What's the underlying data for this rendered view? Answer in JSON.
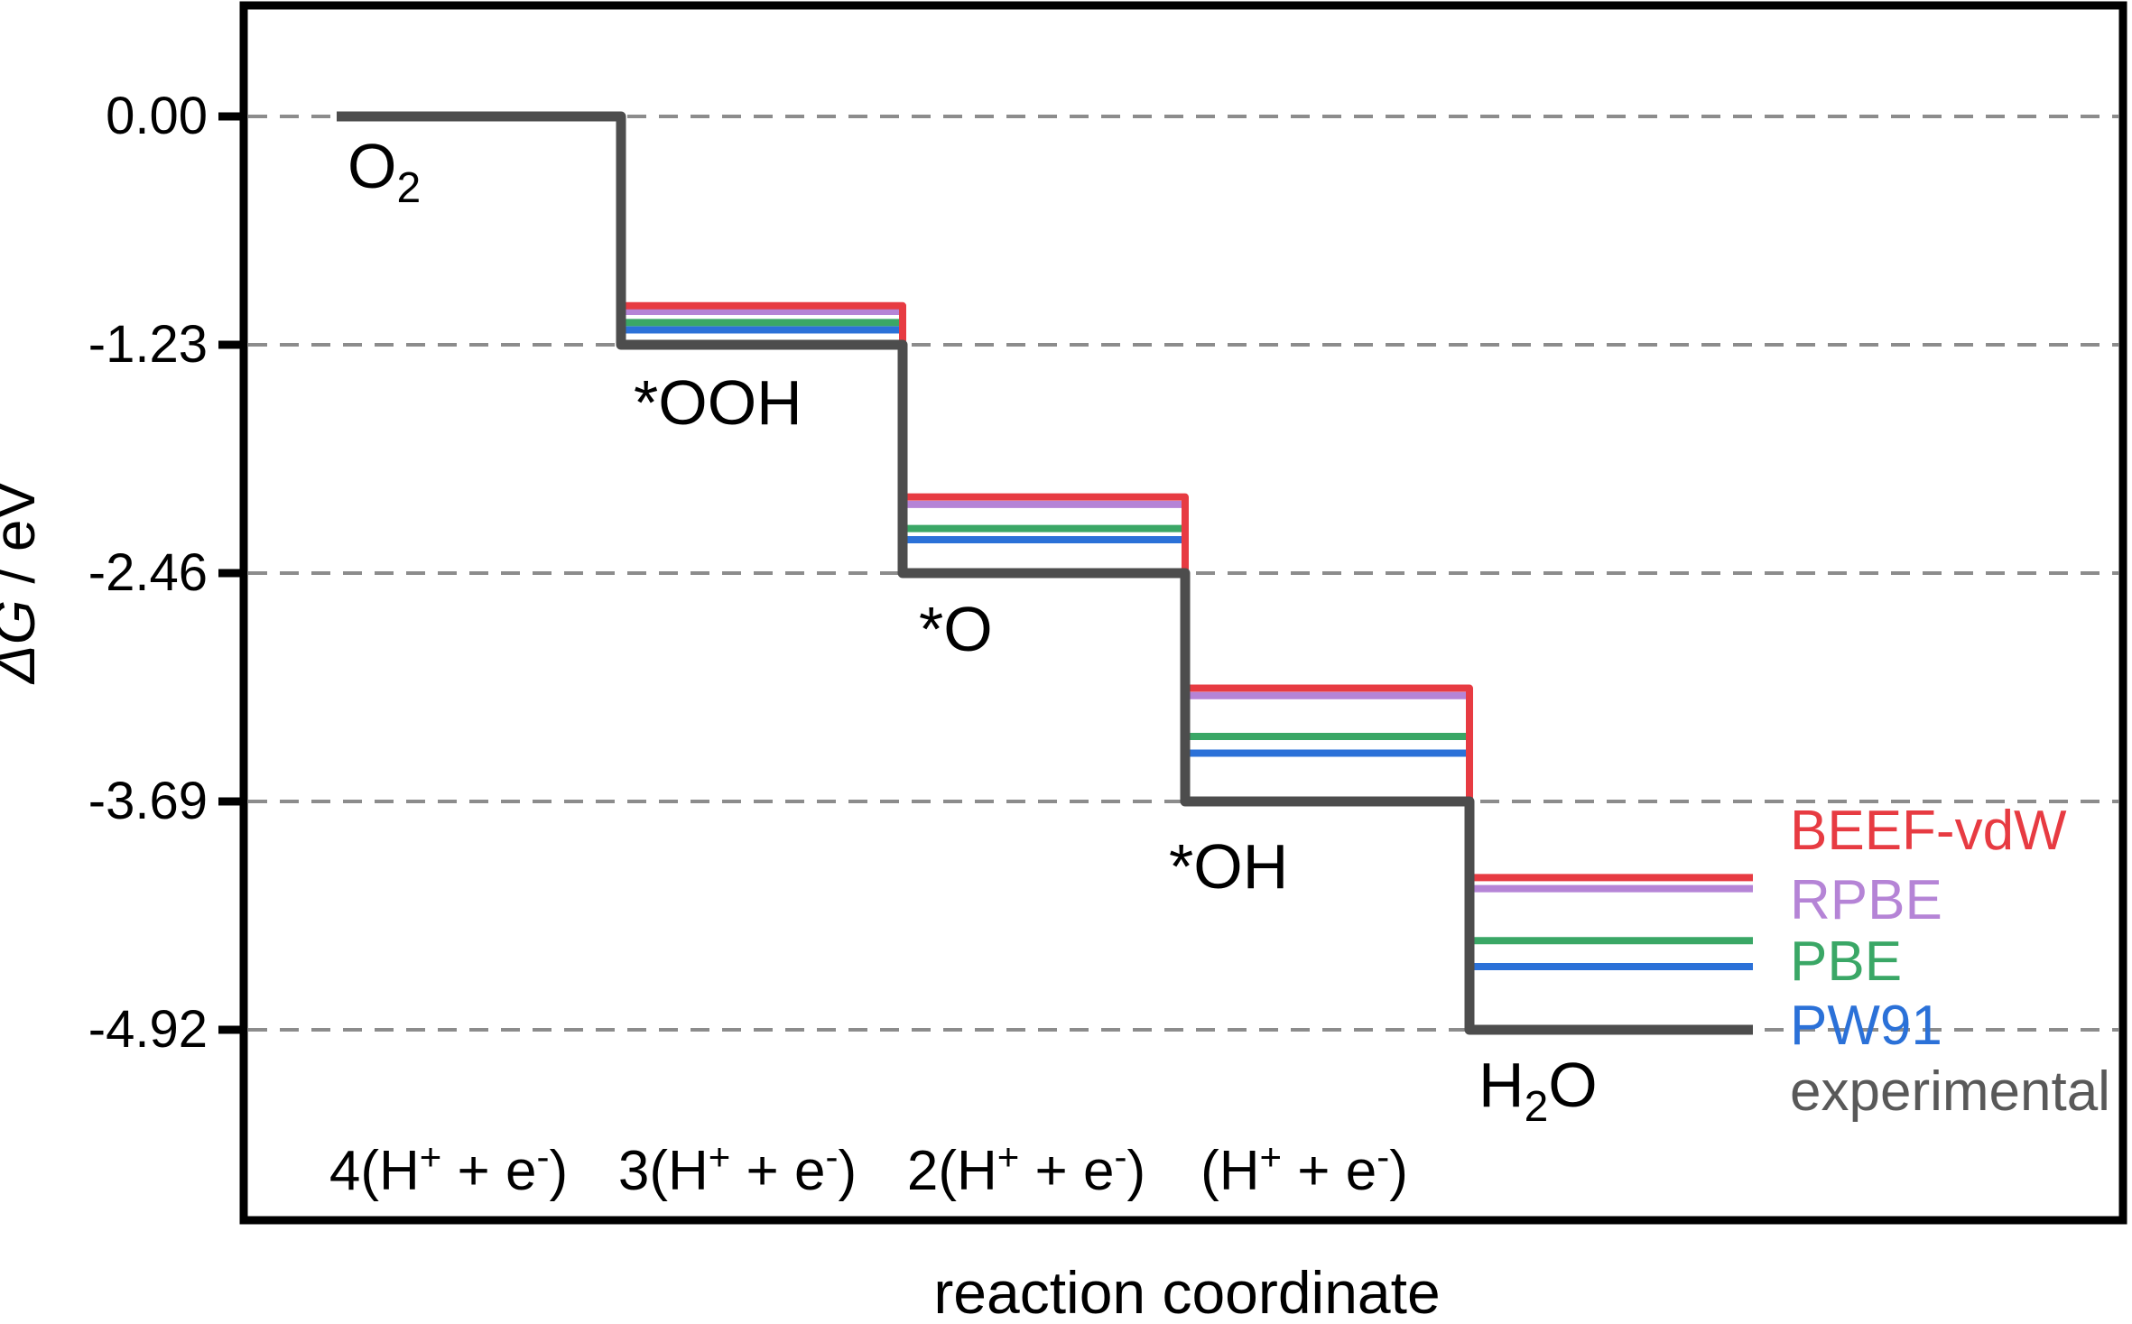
{
  "figure": {
    "background": "#ffffff",
    "frame_color": "#000000",
    "grid_color": "#8c8c8c",
    "tick_label_color": "#000000"
  },
  "chart_data": {
    "type": "line",
    "subtype": "free-energy-step-diagram",
    "title": "",
    "xlabel": "reaction coordinate",
    "ylabel": "ΔG / eV",
    "ylabel_parts": [
      {
        "t": "ΔG",
        "italic": true
      },
      {
        "t": " / eV",
        "italic": false
      }
    ],
    "ylim": [
      -5.95,
      0.6
    ],
    "grid": "horizontal dashed lines at each y tick",
    "legend_position": "right side, stacked, outside line ends",
    "yticks": [
      0.0,
      -1.23,
      -2.46,
      -3.69,
      -4.92
    ],
    "ytick_labels": [
      "0.00",
      "-1.23",
      "-2.46",
      "-3.69",
      "-4.92"
    ],
    "categories": [
      "O2",
      "*OOH",
      "*O",
      "*OH",
      "H2O"
    ],
    "series": [
      {
        "name": "PW91",
        "color": "#2b71d8",
        "stroke_width": 8,
        "values": [
          0.0,
          -1.15,
          -2.28,
          -3.43,
          -4.58
        ]
      },
      {
        "name": "PBE",
        "color": "#3aa766",
        "stroke_width": 8,
        "values": [
          0.0,
          -1.11,
          -2.22,
          -3.34,
          -4.44
        ]
      },
      {
        "name": "RPBE",
        "color": "#b584d6",
        "stroke_width": 8,
        "values": [
          0.0,
          -1.05,
          -2.09,
          -3.12,
          -4.16
        ]
      },
      {
        "name": "BEEF-vdW",
        "color": "#e73b42",
        "stroke_width": 8,
        "values": [
          0.0,
          -1.02,
          -2.05,
          -3.08,
          -4.1
        ]
      },
      {
        "name": "experimental",
        "color": "#4d4d4d",
        "stroke_width": 11,
        "values": [
          0.0,
          -1.23,
          -2.46,
          -3.69,
          -4.92
        ]
      }
    ],
    "legend": [
      {
        "label": "BEEF-vdW",
        "color": "#e73b42"
      },
      {
        "label": "RPBE",
        "color": "#b584d6"
      },
      {
        "label": "PBE",
        "color": "#3aa766"
      },
      {
        "label": "PW91",
        "color": "#2b71d8"
      },
      {
        "label": "experimental",
        "color": "#595959"
      }
    ],
    "species_labels": [
      {
        "name": "O2",
        "parts": [
          {
            "t": "O"
          },
          {
            "t": "2",
            "sub": true
          }
        ]
      },
      {
        "name": "*OOH",
        "parts": [
          {
            "t": "*OOH"
          }
        ]
      },
      {
        "name": "*O",
        "parts": [
          {
            "t": "*O"
          }
        ]
      },
      {
        "name": "*OH",
        "parts": [
          {
            "t": "*OH"
          }
        ]
      },
      {
        "name": "H2O",
        "parts": [
          {
            "t": "H"
          },
          {
            "t": "2",
            "sub": true
          },
          {
            "t": "O"
          }
        ]
      }
    ],
    "electron_transfer_labels": [
      {
        "name": "4(H+ + e-)",
        "parts": [
          {
            "t": "4(H"
          },
          {
            "t": "+",
            "sup": true
          },
          {
            "t": " + e"
          },
          {
            "t": "-",
            "sup": true
          },
          {
            "t": ")"
          }
        ]
      },
      {
        "name": "3(H+ + e-)",
        "parts": [
          {
            "t": "3(H"
          },
          {
            "t": "+",
            "sup": true
          },
          {
            "t": " + e"
          },
          {
            "t": "-",
            "sup": true
          },
          {
            "t": ")"
          }
        ]
      },
      {
        "name": "2(H+ + e-)",
        "parts": [
          {
            "t": "2(H"
          },
          {
            "t": "+",
            "sup": true
          },
          {
            "t": " + e"
          },
          {
            "t": "-",
            "sup": true
          },
          {
            "t": ")"
          }
        ]
      },
      {
        "name": "(H+ + e-)",
        "parts": [
          {
            "t": "(H"
          },
          {
            "t": "+",
            "sup": true
          },
          {
            "t": " + e"
          },
          {
            "t": "-",
            "sup": true
          },
          {
            "t": ")"
          }
        ]
      }
    ]
  }
}
